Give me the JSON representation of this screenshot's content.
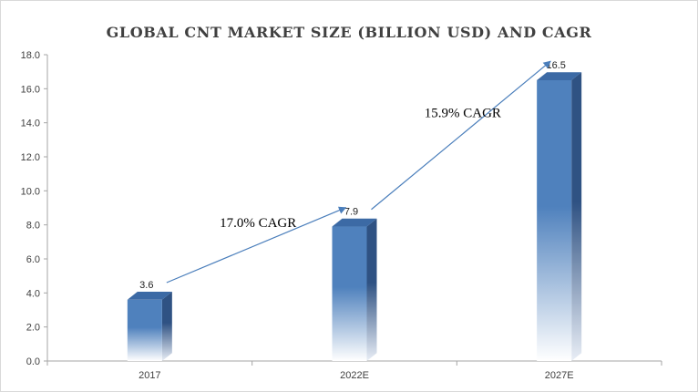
{
  "chart_data": {
    "type": "bar",
    "title": "GLOBAL CNT MARKET SIZE  (BILLION USD) AND CAGR",
    "categories": [
      "2017",
      "2022E",
      "2027E"
    ],
    "values": [
      3.6,
      7.9,
      16.5
    ],
    "data_labels": [
      "3.6",
      "7.9",
      "16.5"
    ],
    "ylim": [
      0,
      18
    ],
    "yticks": [
      "0.0",
      "2.0",
      "4.0",
      "6.0",
      "8.0",
      "10.0",
      "12.0",
      "14.0",
      "16.0",
      "18.0"
    ],
    "xlabel": "",
    "ylabel": "",
    "grid": false,
    "annotations": [
      {
        "text": "17.0% CAGR",
        "from": "2017",
        "to": "2022E"
      },
      {
        "text": "15.9% CAGR",
        "from": "2022E",
        "to": "2027E"
      }
    ],
    "colors": {
      "bar_front": "#4f81bd",
      "bar_side": "#2f5283",
      "bar_top": "#3c6aa5",
      "arrow": "#4a7ebb",
      "axis": "#a6a6a6"
    }
  }
}
